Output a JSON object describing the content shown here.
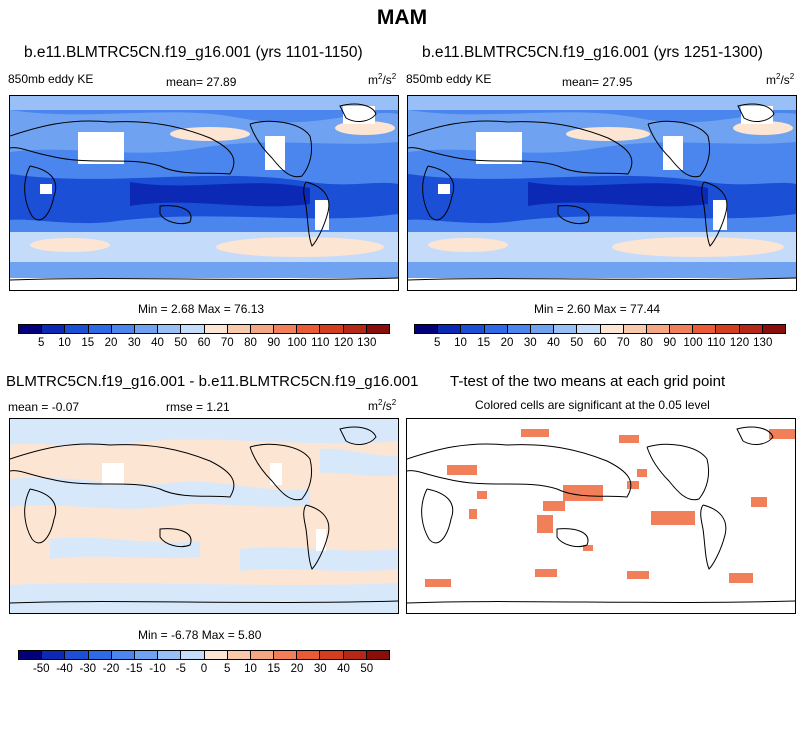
{
  "figure_title": "MAM",
  "panels": {
    "p1": {
      "title": "b.e11.BLMTRC5CN.f19_g16.001 (yrs 1101-1150)",
      "left_label": "850mb eddy KE",
      "center_label": "mean=  27.89",
      "units_base": "m",
      "units_exp1": "2",
      "units_mid": "/s",
      "units_exp2": "2",
      "minmax": "Min =   2.68 Max =  76.13"
    },
    "p2": {
      "title": "b.e11.BLMTRC5CN.f19_g16.001 (yrs 1251-1300)",
      "left_label": "850mb eddy KE",
      "center_label": "mean=  27.95",
      "units_base": "m",
      "units_exp1": "2",
      "units_mid": "/s",
      "units_exp2": "2",
      "minmax": "Min =   2.60 Max =  77.44"
    },
    "p3": {
      "title": "BLMTRC5CN.f19_g16.001 - b.e11.BLMTRC5CN.f19_g16.001",
      "left_label": "mean =  -0.07",
      "center_label": "rmse =   1.21",
      "units_base": "m",
      "units_exp1": "2",
      "units_mid": "/s",
      "units_exp2": "2",
      "minmax": "Min =  -6.78 Max =   5.80"
    },
    "p4": {
      "title": "T-test of the two means at each grid point",
      "subtitle": "Colored cells are significant at the 0.05 level"
    }
  },
  "colorbars": {
    "abs": {
      "colors": [
        "#04007a",
        "#0b29b5",
        "#1a4fd6",
        "#2f6ae6",
        "#4b86ee",
        "#6fa3f2",
        "#98bff6",
        "#c4dcfa",
        "#fde5d3",
        "#f9c9ab",
        "#f5a682",
        "#f1805a",
        "#ea5a35",
        "#d43e20",
        "#b52815",
        "#8a0f0a"
      ],
      "labels": [
        "5",
        "10",
        "15",
        "20",
        "30",
        "40",
        "50",
        "60",
        "70",
        "80",
        "90",
        "100",
        "110",
        "120",
        "130"
      ]
    },
    "diff": {
      "colors": [
        "#04007a",
        "#0b29b5",
        "#1a4fd6",
        "#2f6ae6",
        "#4b86ee",
        "#6fa3f2",
        "#98bff6",
        "#c4dcfa",
        "#fde5d3",
        "#f9c9ab",
        "#f5a682",
        "#f1805a",
        "#ea5a35",
        "#d43e20",
        "#b52815",
        "#8a0f0a"
      ],
      "labels": [
        "-50",
        "-40",
        "-30",
        "-20",
        "-15",
        "-10",
        "-5",
        "0",
        "5",
        "10",
        "15",
        "20",
        "30",
        "40",
        "50"
      ]
    }
  },
  "chart_data": [
    {
      "type": "heatmap",
      "title": "b.e11.BLMTRC5CN.f19_g16.001 (yrs 1101-1150)",
      "variable": "850mb eddy KE",
      "units": "m2/s2",
      "mean": 27.89,
      "min": 2.68,
      "max": 76.13,
      "levels": [
        5,
        10,
        15,
        20,
        30,
        40,
        50,
        60,
        70,
        80,
        90,
        100,
        110,
        120,
        130
      ]
    },
    {
      "type": "heatmap",
      "title": "b.e11.BLMTRC5CN.f19_g16.001 (yrs 1251-1300)",
      "variable": "850mb eddy KE",
      "units": "m2/s2",
      "mean": 27.95,
      "min": 2.6,
      "max": 77.44,
      "levels": [
        5,
        10,
        15,
        20,
        30,
        40,
        50,
        60,
        70,
        80,
        90,
        100,
        110,
        120,
        130
      ]
    },
    {
      "type": "heatmap",
      "title": "BLMTRC5CN.f19_g16.001 - b.e11.BLMTRC5CN.f19_g16.001",
      "units": "m2/s2",
      "mean": -0.07,
      "rmse": 1.21,
      "min": -6.78,
      "max": 5.8,
      "levels": [
        -50,
        -40,
        -30,
        -20,
        -15,
        -10,
        -5,
        0,
        5,
        10,
        15,
        20,
        30,
        40,
        50
      ]
    },
    {
      "type": "heatmap",
      "title": "T-test of the two means at each grid point",
      "annotation": "Colored cells are significant at the 0.05 level",
      "significance_level": 0.05
    }
  ]
}
